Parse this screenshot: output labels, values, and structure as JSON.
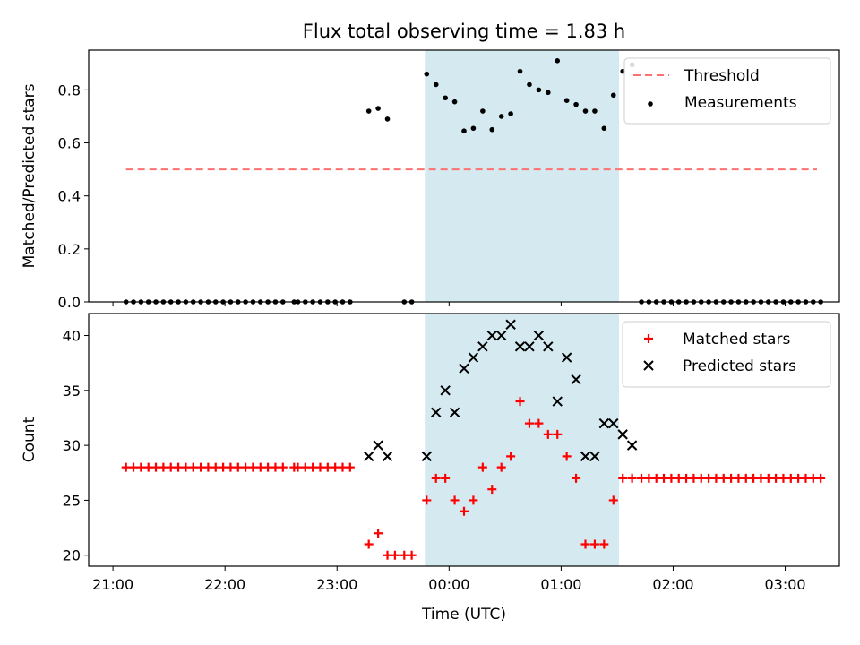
{
  "chart_data": {
    "title": "Flux total observing time = 1.83 h",
    "xlabel": "Time (UTC)",
    "x_ticks": [
      "21:00",
      "22:00",
      "23:00",
      "00:00",
      "01:00",
      "02:00",
      "03:00"
    ],
    "x_range": [
      "20:47",
      "03:29"
    ],
    "shaded_interval": {
      "start": "23:47",
      "end": "01:31",
      "color": "#d4eaf0"
    },
    "panels": [
      {
        "type": "scatter",
        "ylabel": "Matched/Predicted stars",
        "ylim": [
          0,
          0.95
        ],
        "y_ticks": [
          "0.0",
          "0.2",
          "0.4",
          "0.6",
          "0.8"
        ],
        "grid": false,
        "legend": "top-right",
        "threshold": {
          "name": "Threshold",
          "value": 0.5,
          "x_start": "21:07",
          "x_end": "03:17",
          "color": "#ff7070",
          "style": "dashed"
        },
        "series": [
          {
            "name": "Measurements",
            "color": "#000000",
            "marker": "dot",
            "points": [
              [
                "21:07",
                0
              ],
              [
                "21:11",
                0
              ],
              [
                "21:15",
                0
              ],
              [
                "21:19",
                0
              ],
              [
                "21:23",
                0
              ],
              [
                "21:27",
                0
              ],
              [
                "21:31",
                0
              ],
              [
                "21:35",
                0
              ],
              [
                "21:39",
                0
              ],
              [
                "21:43",
                0
              ],
              [
                "21:47",
                0
              ],
              [
                "21:51",
                0
              ],
              [
                "21:55",
                0
              ],
              [
                "21:59",
                0
              ],
              [
                "22:03",
                0
              ],
              [
                "22:07",
                0
              ],
              [
                "22:11",
                0
              ],
              [
                "22:15",
                0
              ],
              [
                "22:19",
                0
              ],
              [
                "22:23",
                0
              ],
              [
                "22:27",
                0
              ],
              [
                "22:31",
                0
              ],
              [
                "22:37",
                0
              ],
              [
                "22:39",
                0
              ],
              [
                "22:43",
                0
              ],
              [
                "22:47",
                0
              ],
              [
                "22:51",
                0
              ],
              [
                "22:55",
                0
              ],
              [
                "22:59",
                0
              ],
              [
                "23:03",
                0
              ],
              [
                "23:07",
                0
              ],
              [
                "23:17",
                0.72
              ],
              [
                "23:22",
                0.73
              ],
              [
                "23:27",
                0.69
              ],
              [
                "23:36",
                0
              ],
              [
                "23:40",
                0
              ],
              [
                "23:48",
                0.86
              ],
              [
                "23:53",
                0.82
              ],
              [
                "23:58",
                0.77
              ],
              [
                "00:03",
                0.755
              ],
              [
                "00:08",
                0.645
              ],
              [
                "00:13",
                0.655
              ],
              [
                "00:18",
                0.72
              ],
              [
                "00:23",
                0.65
              ],
              [
                "00:28",
                0.7
              ],
              [
                "00:33",
                0.71
              ],
              [
                "00:38",
                0.87
              ],
              [
                "00:43",
                0.82
              ],
              [
                "00:48",
                0.8
              ],
              [
                "00:53",
                0.79
              ],
              [
                "00:58",
                0.91
              ],
              [
                "01:03",
                0.76
              ],
              [
                "01:08",
                0.745
              ],
              [
                "01:13",
                0.72
              ],
              [
                "01:18",
                0.72
              ],
              [
                "01:23",
                0.655
              ],
              [
                "01:28",
                0.78
              ],
              [
                "01:33",
                0.87
              ],
              [
                "01:38",
                0.895
              ],
              [
                "01:43",
                0
              ],
              [
                "01:47",
                0
              ],
              [
                "01:51",
                0
              ],
              [
                "01:55",
                0
              ],
              [
                "01:59",
                0
              ],
              [
                "02:03",
                0
              ],
              [
                "02:07",
                0
              ],
              [
                "02:11",
                0
              ],
              [
                "02:15",
                0
              ],
              [
                "02:19",
                0
              ],
              [
                "02:23",
                0
              ],
              [
                "02:27",
                0
              ],
              [
                "02:31",
                0
              ],
              [
                "02:35",
                0
              ],
              [
                "02:39",
                0
              ],
              [
                "02:43",
                0
              ],
              [
                "02:47",
                0
              ],
              [
                "02:51",
                0
              ],
              [
                "02:55",
                0
              ],
              [
                "02:59",
                0
              ],
              [
                "03:03",
                0
              ],
              [
                "03:07",
                0
              ],
              [
                "03:11",
                0
              ],
              [
                "03:15",
                0
              ],
              [
                "03:19",
                0
              ]
            ]
          }
        ]
      },
      {
        "type": "scatter",
        "ylabel": "Count",
        "ylim": [
          19,
          42
        ],
        "y_ticks": [
          "20",
          "25",
          "30",
          "35",
          "40"
        ],
        "grid": false,
        "legend": "top-right",
        "series": [
          {
            "name": "Matched stars",
            "color": "#ff0000",
            "marker": "plus",
            "points": [
              [
                "21:07",
                28
              ],
              [
                "21:11",
                28
              ],
              [
                "21:15",
                28
              ],
              [
                "21:19",
                28
              ],
              [
                "21:23",
                28
              ],
              [
                "21:27",
                28
              ],
              [
                "21:31",
                28
              ],
              [
                "21:35",
                28
              ],
              [
                "21:39",
                28
              ],
              [
                "21:43",
                28
              ],
              [
                "21:47",
                28
              ],
              [
                "21:51",
                28
              ],
              [
                "21:55",
                28
              ],
              [
                "21:59",
                28
              ],
              [
                "22:03",
                28
              ],
              [
                "22:07",
                28
              ],
              [
                "22:11",
                28
              ],
              [
                "22:15",
                28
              ],
              [
                "22:19",
                28
              ],
              [
                "22:23",
                28
              ],
              [
                "22:27",
                28
              ],
              [
                "22:31",
                28
              ],
              [
                "22:37",
                28
              ],
              [
                "22:39",
                28
              ],
              [
                "22:43",
                28
              ],
              [
                "22:47",
                28
              ],
              [
                "22:51",
                28
              ],
              [
                "22:55",
                28
              ],
              [
                "22:59",
                28
              ],
              [
                "23:03",
                28
              ],
              [
                "23:07",
                28
              ],
              [
                "23:17",
                21
              ],
              [
                "23:22",
                22
              ],
              [
                "23:27",
                20
              ],
              [
                "23:31",
                20
              ],
              [
                "23:36",
                20
              ],
              [
                "23:40",
                20
              ],
              [
                "23:48",
                25
              ],
              [
                "23:53",
                27
              ],
              [
                "23:58",
                27
              ],
              [
                "00:03",
                25
              ],
              [
                "00:08",
                24
              ],
              [
                "00:13",
                25
              ],
              [
                "00:18",
                28
              ],
              [
                "00:23",
                26
              ],
              [
                "00:28",
                28
              ],
              [
                "00:33",
                29
              ],
              [
                "00:38",
                34
              ],
              [
                "00:43",
                32
              ],
              [
                "00:48",
                32
              ],
              [
                "00:53",
                31
              ],
              [
                "00:58",
                31
              ],
              [
                "01:03",
                29
              ],
              [
                "01:08",
                27
              ],
              [
                "01:13",
                21
              ],
              [
                "01:18",
                21
              ],
              [
                "01:23",
                21
              ],
              [
                "01:28",
                25
              ],
              [
                "01:33",
                27
              ],
              [
                "01:38",
                27
              ],
              [
                "01:43",
                27
              ],
              [
                "01:47",
                27
              ],
              [
                "01:51",
                27
              ],
              [
                "01:55",
                27
              ],
              [
                "01:59",
                27
              ],
              [
                "02:03",
                27
              ],
              [
                "02:07",
                27
              ],
              [
                "02:11",
                27
              ],
              [
                "02:15",
                27
              ],
              [
                "02:19",
                27
              ],
              [
                "02:23",
                27
              ],
              [
                "02:27",
                27
              ],
              [
                "02:31",
                27
              ],
              [
                "02:35",
                27
              ],
              [
                "02:39",
                27
              ],
              [
                "02:43",
                27
              ],
              [
                "02:47",
                27
              ],
              [
                "02:51",
                27
              ],
              [
                "02:55",
                27
              ],
              [
                "02:59",
                27
              ],
              [
                "03:03",
                27
              ],
              [
                "03:07",
                27
              ],
              [
                "03:11",
                27
              ],
              [
                "03:15",
                27
              ],
              [
                "03:19",
                27
              ]
            ]
          },
          {
            "name": "Predicted stars",
            "color": "#000000",
            "marker": "x",
            "points": [
              [
                "23:17",
                29
              ],
              [
                "23:22",
                30
              ],
              [
                "23:27",
                29
              ],
              [
                "23:48",
                29
              ],
              [
                "23:53",
                33
              ],
              [
                "23:58",
                35
              ],
              [
                "00:03",
                33
              ],
              [
                "00:08",
                37
              ],
              [
                "00:13",
                38
              ],
              [
                "00:18",
                39
              ],
              [
                "00:23",
                40
              ],
              [
                "00:28",
                40
              ],
              [
                "00:33",
                41
              ],
              [
                "00:38",
                39
              ],
              [
                "00:43",
                39
              ],
              [
                "00:48",
                40
              ],
              [
                "00:53",
                39
              ],
              [
                "00:58",
                34
              ],
              [
                "01:03",
                38
              ],
              [
                "01:08",
                36
              ],
              [
                "01:13",
                29
              ],
              [
                "01:18",
                29
              ],
              [
                "01:23",
                32
              ],
              [
                "01:28",
                32
              ],
              [
                "01:33",
                31
              ],
              [
                "01:38",
                30
              ]
            ]
          }
        ]
      }
    ]
  }
}
